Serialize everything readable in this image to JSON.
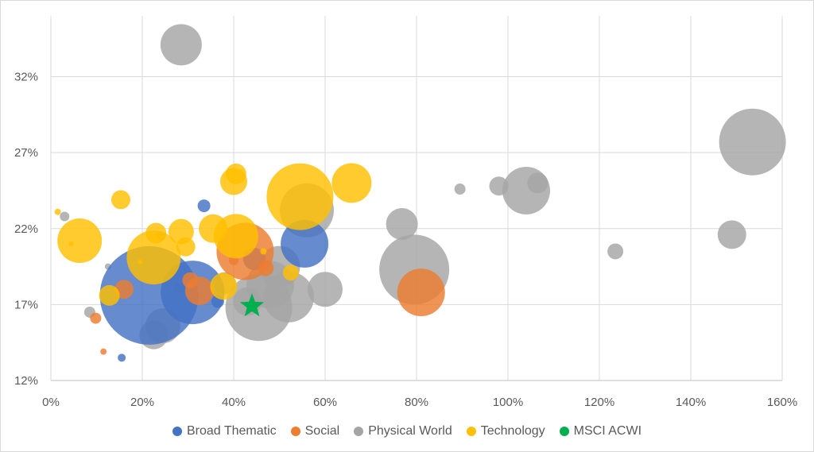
{
  "chart_data": {
    "type": "scatter",
    "subtype": "bubble",
    "title": "",
    "xlabel": "",
    "ylabel": "",
    "xlim": [
      0,
      160
    ],
    "ylim": [
      12,
      36
    ],
    "x_ticks": [
      0,
      20,
      40,
      60,
      80,
      100,
      120,
      140,
      160
    ],
    "y_ticks": [
      12,
      17,
      22,
      27,
      32
    ],
    "x_tick_labels": [
      "0%",
      "20%",
      "40%",
      "60%",
      "80%",
      "100%",
      "120%",
      "140%",
      "160%"
    ],
    "y_tick_labels": [
      "12%",
      "17%",
      "22%",
      "27%",
      "32%"
    ],
    "grid": true,
    "legend_position": "bottom",
    "series": [
      {
        "name": "Physical World",
        "color": "#a5a5a5",
        "points": [
          {
            "x": 28.5,
            "y": 34.1,
            "size": 26
          },
          {
            "x": 153.5,
            "y": 27.7,
            "size": 42
          },
          {
            "x": 104,
            "y": 24.5,
            "size": 30
          },
          {
            "x": 106.5,
            "y": 25,
            "size": 13
          },
          {
            "x": 98,
            "y": 24.8,
            "size": 12
          },
          {
            "x": 89.5,
            "y": 24.6,
            "size": 7
          },
          {
            "x": 149,
            "y": 21.6,
            "size": 18
          },
          {
            "x": 123.5,
            "y": 20.5,
            "size": 10
          },
          {
            "x": 76.8,
            "y": 22.3,
            "size": 20
          },
          {
            "x": 79.5,
            "y": 19.3,
            "size": 44
          },
          {
            "x": 56,
            "y": 23.2,
            "size": 34
          },
          {
            "x": 45.5,
            "y": 16.8,
            "size": 42
          },
          {
            "x": 52,
            "y": 17.5,
            "size": 32
          },
          {
            "x": 50,
            "y": 19.5,
            "size": 26
          },
          {
            "x": 60,
            "y": 18,
            "size": 22
          },
          {
            "x": 48,
            "y": 18.3,
            "size": 30
          },
          {
            "x": 43,
            "y": 17.2,
            "size": 18
          },
          {
            "x": 38,
            "y": 18.4,
            "size": 14
          },
          {
            "x": 28,
            "y": 18.1,
            "size": 7
          },
          {
            "x": 24.5,
            "y": 15.6,
            "size": 22
          },
          {
            "x": 22.5,
            "y": 15,
            "size": 18
          },
          {
            "x": 8.5,
            "y": 16.5,
            "size": 7
          },
          {
            "x": 3,
            "y": 22.8,
            "size": 6
          },
          {
            "x": 12.5,
            "y": 19.5,
            "size": 4
          },
          {
            "x": 24,
            "y": 21.5,
            "size": 6
          }
        ]
      },
      {
        "name": "Broad Thematic",
        "color": "#4472c4",
        "points": [
          {
            "x": 21.5,
            "y": 17.6,
            "size": 62
          },
          {
            "x": 31,
            "y": 17.8,
            "size": 40
          },
          {
            "x": 55.5,
            "y": 21,
            "size": 30
          },
          {
            "x": 33.5,
            "y": 23.5,
            "size": 8
          },
          {
            "x": 15.5,
            "y": 13.5,
            "size": 5
          },
          {
            "x": 44.5,
            "y": 20,
            "size": 14
          },
          {
            "x": 36.5,
            "y": 17.2,
            "size": 8
          }
        ]
      },
      {
        "name": "Social",
        "color": "#ed7d31",
        "points": [
          {
            "x": 81,
            "y": 17.8,
            "size": 30
          },
          {
            "x": 42.5,
            "y": 20.5,
            "size": 36
          },
          {
            "x": 32.5,
            "y": 17.9,
            "size": 18
          },
          {
            "x": 30.5,
            "y": 18.6,
            "size": 10
          },
          {
            "x": 16,
            "y": 18,
            "size": 12
          },
          {
            "x": 9.8,
            "y": 16.1,
            "size": 7
          },
          {
            "x": 40,
            "y": 19.9,
            "size": 6
          },
          {
            "x": 11.5,
            "y": 13.9,
            "size": 4
          },
          {
            "x": 47,
            "y": 19.4,
            "size": 10
          }
        ]
      },
      {
        "name": "Technology",
        "color": "#ffc000",
        "points": [
          {
            "x": 54.5,
            "y": 24.1,
            "size": 42
          },
          {
            "x": 65.8,
            "y": 25,
            "size": 25
          },
          {
            "x": 40.5,
            "y": 25.6,
            "size": 13
          },
          {
            "x": 40,
            "y": 25.1,
            "size": 17
          },
          {
            "x": 40.5,
            "y": 21.5,
            "size": 28
          },
          {
            "x": 35.5,
            "y": 22,
            "size": 18
          },
          {
            "x": 28.5,
            "y": 21.8,
            "size": 16
          },
          {
            "x": 29.5,
            "y": 20.8,
            "size": 12
          },
          {
            "x": 23,
            "y": 21.7,
            "size": 13
          },
          {
            "x": 22.5,
            "y": 20.1,
            "size": 34
          },
          {
            "x": 15.3,
            "y": 23.9,
            "size": 12
          },
          {
            "x": 6.3,
            "y": 21.2,
            "size": 28
          },
          {
            "x": 12.8,
            "y": 17.6,
            "size": 13
          },
          {
            "x": 37.8,
            "y": 18.2,
            "size": 17
          },
          {
            "x": 52.5,
            "y": 19.1,
            "size": 10
          },
          {
            "x": 1.5,
            "y": 23.1,
            "size": 4
          },
          {
            "x": 4.5,
            "y": 21,
            "size": 3
          },
          {
            "x": 46.5,
            "y": 20.5,
            "size": 4
          },
          {
            "x": 19.5,
            "y": 19.8,
            "size": 3
          }
        ]
      },
      {
        "name": "MSCI ACWI",
        "color": "#00b050",
        "marker": "star",
        "points": [
          {
            "x": 44,
            "y": 16.9,
            "size": 16
          }
        ]
      }
    ],
    "legend": [
      {
        "name": "Broad Thematic",
        "color": "#4472c4"
      },
      {
        "name": "Social",
        "color": "#ed7d31"
      },
      {
        "name": "Physical World",
        "color": "#a5a5a5"
      },
      {
        "name": "Technology",
        "color": "#ffc000"
      },
      {
        "name": "MSCI ACWI",
        "color": "#00b050"
      }
    ]
  }
}
